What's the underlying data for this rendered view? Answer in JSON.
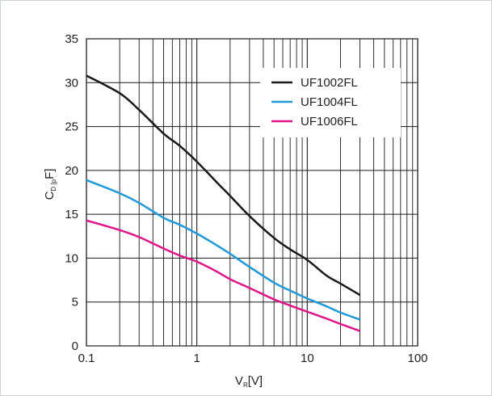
{
  "chart_data": {
    "type": "line",
    "xscale": "log",
    "xlim": [
      0.1,
      100
    ],
    "ylim": [
      0,
      35
    ],
    "grid": true,
    "legend_position": "top-right",
    "xlabel": {
      "main": "V",
      "sub": "R",
      "unit": "[V]"
    },
    "ylabel": {
      "main": "C",
      "sub": "D [p",
      "unit": "F]"
    },
    "x_ticks": [
      {
        "value": 0.1,
        "label": "0.1"
      },
      {
        "value": 1,
        "label": "1"
      },
      {
        "value": 10,
        "label": "10"
      },
      {
        "value": 100,
        "label": "100"
      }
    ],
    "y_ticks": [
      {
        "value": 0,
        "label": "0"
      },
      {
        "value": 5,
        "label": "5"
      },
      {
        "value": 10,
        "label": "10"
      },
      {
        "value": 15,
        "label": "15"
      },
      {
        "value": 20,
        "label": "20"
      },
      {
        "value": 25,
        "label": "25"
      },
      {
        "value": 30,
        "label": "30"
      },
      {
        "value": 35,
        "label": "35"
      }
    ],
    "series": [
      {
        "name": "UF1002FL",
        "color": "#1a1a1a",
        "x": [
          0.1,
          0.2,
          0.3,
          0.5,
          0.7,
          1,
          1.5,
          2,
          3,
          5,
          7,
          10,
          15,
          20,
          30
        ],
        "y": [
          30.8,
          28.8,
          26.9,
          24.2,
          22.8,
          21.0,
          18.7,
          17.1,
          14.8,
          12.3,
          11.0,
          9.8,
          8.0,
          7.1,
          5.8
        ]
      },
      {
        "name": "UF1004FL",
        "color": "#1e9ad8",
        "x": [
          0.1,
          0.2,
          0.3,
          0.5,
          0.7,
          1,
          1.5,
          2,
          3,
          5,
          7,
          10,
          15,
          20,
          30
        ],
        "y": [
          18.9,
          17.4,
          16.3,
          14.6,
          13.8,
          12.8,
          11.5,
          10.5,
          9.0,
          7.2,
          6.3,
          5.4,
          4.5,
          3.8,
          3.0
        ]
      },
      {
        "name": "UF1006FL",
        "color": "#e0158a",
        "x": [
          0.1,
          0.2,
          0.3,
          0.5,
          0.7,
          1,
          1.5,
          2,
          3,
          5,
          7,
          10,
          15,
          20,
          30
        ],
        "y": [
          14.3,
          13.2,
          12.4,
          11.1,
          10.3,
          9.6,
          8.5,
          7.6,
          6.6,
          5.3,
          4.6,
          3.9,
          3.1,
          2.5,
          1.7
        ]
      }
    ]
  }
}
